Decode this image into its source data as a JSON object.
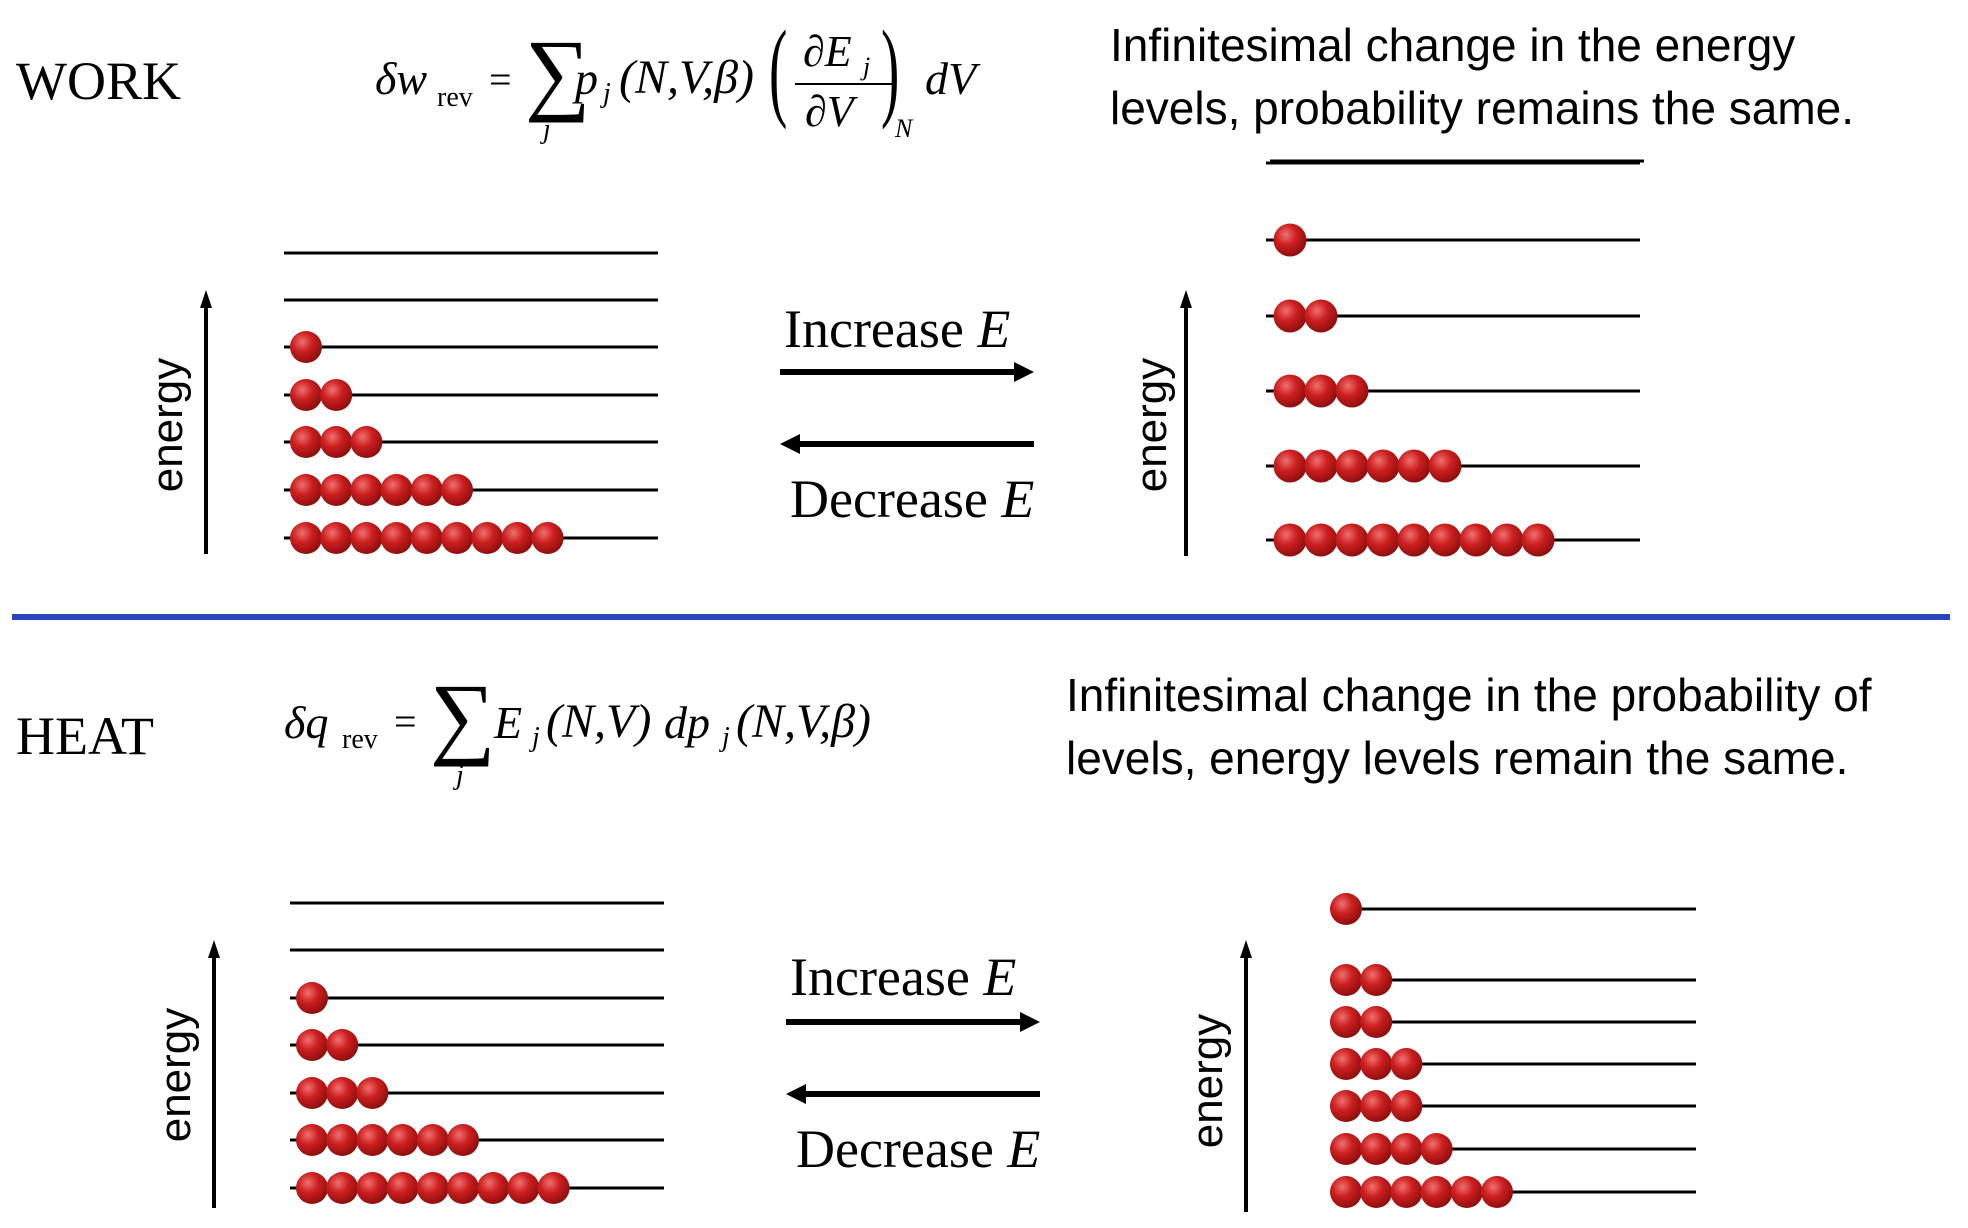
{
  "work": {
    "label": "WORK",
    "equation": {
      "lhs_symbol": "δw",
      "lhs_subscript": "rev",
      "equals": "=",
      "sum_index": "j",
      "term": "p",
      "term_subscript": "j",
      "args": "(N,V,β)",
      "deriv_num": "∂E",
      "deriv_num_sub": "j",
      "deriv_den": "∂V",
      "deriv_outer_sub": "N",
      "tail": "dV"
    },
    "description_line1": "Infinitesimal change in the energy",
    "description_line2": "levels, probability remains the same.",
    "increase_label": "Increase",
    "decrease_label": "Decrease",
    "e_symbol": "E",
    "axis_label": "energy",
    "left_diagram": {
      "level_counts": [
        9,
        6,
        3,
        2,
        1,
        0,
        0
      ]
    },
    "right_diagram": {
      "level_counts": [
        9,
        6,
        3,
        2,
        1,
        0
      ]
    }
  },
  "heat": {
    "label": "HEAT",
    "equation": {
      "lhs_symbol": "δq",
      "lhs_subscript": "rev",
      "equals": "=",
      "sum_index": "j",
      "term": "E",
      "term_subscript": "j",
      "args1": "(N,V)",
      "dp": "dp",
      "dp_subscript": "j",
      "args2": "(N,V,β)"
    },
    "description_line1": "Infinitesimal change in the probability of",
    "description_line2": "levels, energy levels remain the same.",
    "increase_label": "Increase",
    "decrease_label": "Decrease",
    "e_symbol": "E",
    "axis_label": "energy",
    "left_diagram": {
      "level_counts": [
        9,
        6,
        3,
        2,
        1,
        0,
        0
      ]
    },
    "right_diagram": {
      "level_counts": [
        6,
        4,
        3,
        3,
        2,
        2,
        1
      ]
    }
  },
  "colors": {
    "particle": "#cc1f1f",
    "divider": "#2946c2",
    "line": "#000000"
  }
}
